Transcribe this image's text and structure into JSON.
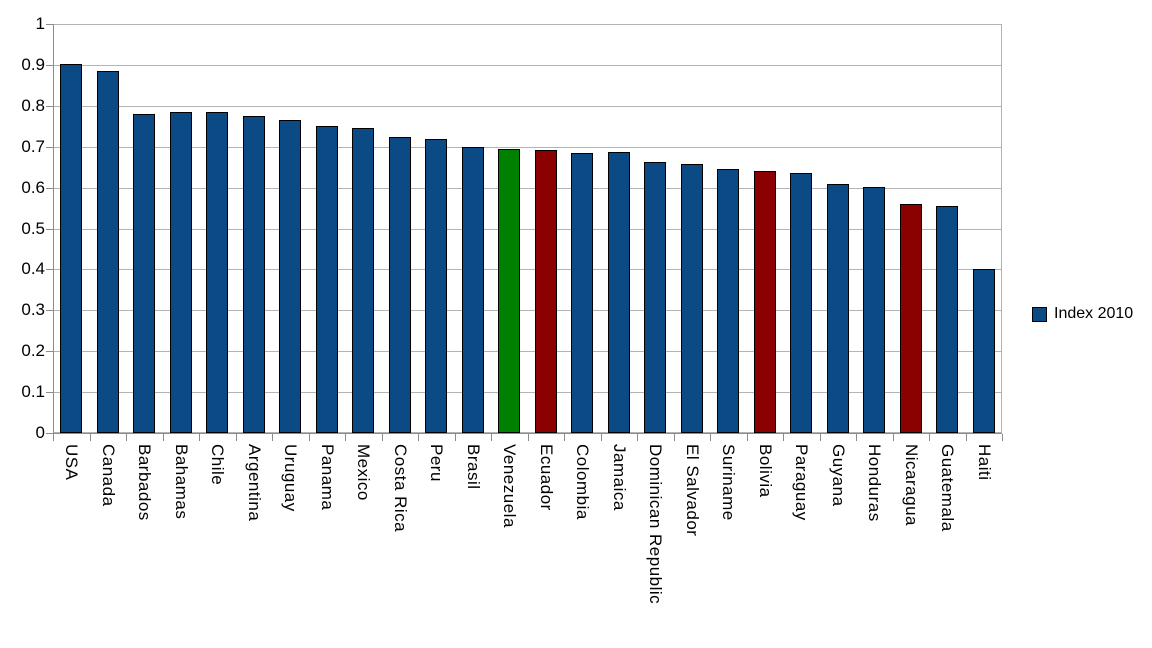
{
  "chart_data": {
    "type": "bar",
    "title": "",
    "xlabel": "",
    "ylabel": "",
    "categories": [
      "USA",
      "Canada",
      "Barbados",
      "Bahamas",
      "Chile",
      "Argentina",
      "Uruguay",
      "Panama",
      "Mexico",
      "Costa Rica",
      "Peru",
      "Brasil",
      "Venezuela",
      "Ecuador",
      "Colombia",
      "Jamaica",
      "Dominican Republic",
      "El Salvador",
      "Suriname",
      "Bolivia",
      "Paraguay",
      "Guyana",
      "Honduras",
      "Nicaragua",
      "Guatemala",
      "Haiti"
    ],
    "series": [
      {
        "name": "Index 2010",
        "values": [
          0.902,
          0.885,
          0.779,
          0.784,
          0.784,
          0.774,
          0.765,
          0.75,
          0.746,
          0.723,
          0.72,
          0.699,
          0.694,
          0.693,
          0.685,
          0.686,
          0.663,
          0.658,
          0.645,
          0.641,
          0.636,
          0.609,
          0.602,
          0.559,
          0.556,
          0.401
        ]
      }
    ],
    "bar_colors": [
      "#0C4A86",
      "#0C4A86",
      "#0C4A86",
      "#0C4A86",
      "#0C4A86",
      "#0C4A86",
      "#0C4A86",
      "#0C4A86",
      "#0C4A86",
      "#0C4A86",
      "#0C4A86",
      "#0C4A86",
      "#008000",
      "#8B0000",
      "#0C4A86",
      "#0C4A86",
      "#0C4A86",
      "#0C4A86",
      "#0C4A86",
      "#8B0000",
      "#0C4A86",
      "#0C4A86",
      "#0C4A86",
      "#8B0000",
      "#0C4A86",
      "#0C4A86"
    ],
    "ylim": [
      0,
      1
    ],
    "ytick_labels": [
      "1",
      "0.9",
      "0.8",
      "0.7",
      "0.6",
      "0.5",
      "0.4",
      "0.3",
      "0.2",
      "0.1",
      "0"
    ],
    "grid": "horizontal",
    "legend_position": "right"
  },
  "legend": {
    "label": "Index 2010",
    "swatch_color": "#0C4A86"
  },
  "colors": {
    "default_bar": "#0C4A86",
    "highlight_green": "#008000",
    "highlight_dark_red": "#8B0000",
    "bar_border": "#000000",
    "gridline": "#B3B3B3",
    "axis": "#8C8C8C",
    "background": "#FFFFFF",
    "text": "#000000"
  }
}
